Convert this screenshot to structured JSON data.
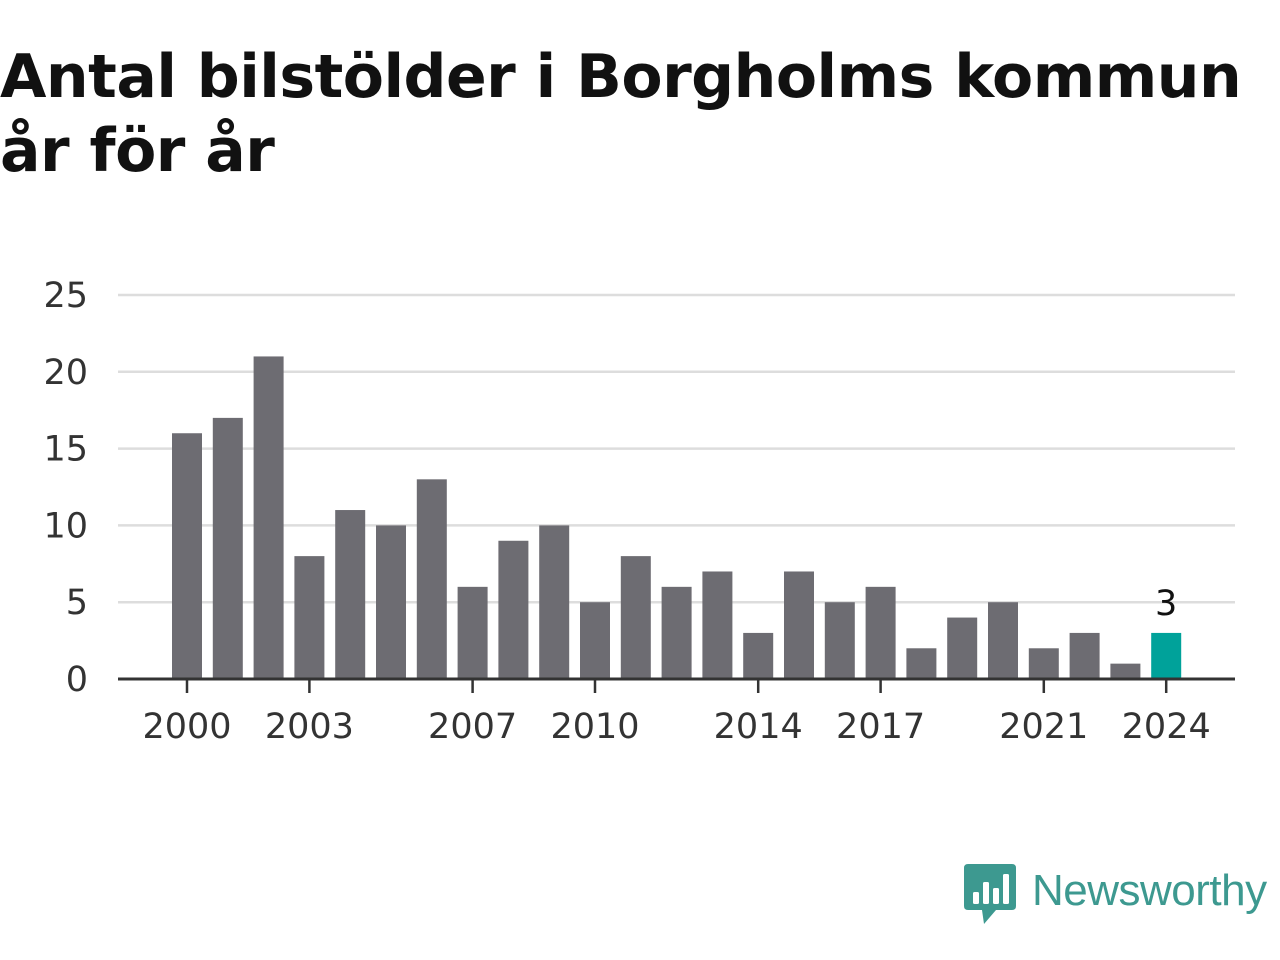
{
  "title": "Antal bilstölder i Borgholms kommun år för år",
  "brand": {
    "name": "Newsworthy",
    "icon": "newsworthy-logo-icon",
    "color": "#3d9990"
  },
  "colors": {
    "bar": "#6d6c72",
    "highlight": "#00a29a",
    "grid": "#dddddd",
    "axis": "#333333"
  },
  "chart_data": {
    "type": "bar",
    "title": "Antal bilstölder i Borgholms kommun år för år",
    "xlabel": "",
    "ylabel": "",
    "categories": [
      "2000",
      "2001",
      "2002",
      "2003",
      "2004",
      "2005",
      "2006",
      "2007",
      "2008",
      "2009",
      "2010",
      "2011",
      "2012",
      "2013",
      "2014",
      "2015",
      "2016",
      "2017",
      "2018",
      "2019",
      "2020",
      "2021",
      "2022",
      "2023",
      "2024"
    ],
    "values": [
      16,
      17,
      21,
      8,
      11,
      10,
      13,
      6,
      9,
      10,
      5,
      8,
      6,
      7,
      3,
      7,
      5,
      6,
      2,
      4,
      5,
      2,
      3,
      1,
      3
    ],
    "ylim": [
      0,
      25
    ],
    "yticks": [
      0,
      5,
      10,
      15,
      20,
      25
    ],
    "xtick_labels": [
      "2000",
      "2003",
      "2007",
      "2010",
      "2014",
      "2017",
      "2021",
      "2024"
    ],
    "highlight_category": "2024",
    "highlight_label": "3",
    "grid": true,
    "legend": "none"
  }
}
